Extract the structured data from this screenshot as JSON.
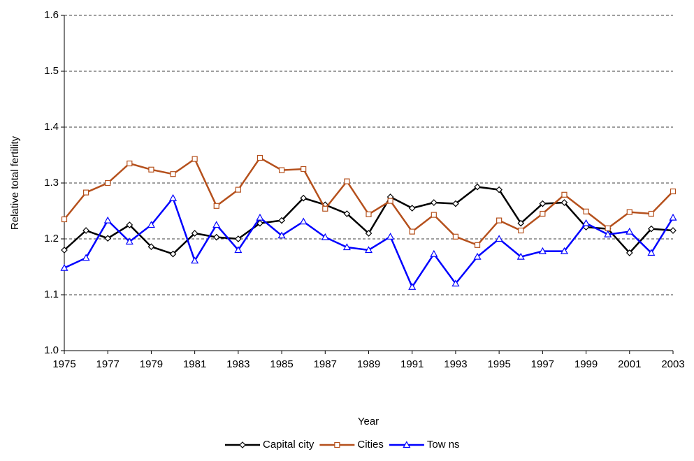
{
  "chart_data": {
    "type": "line",
    "xlabel": "Year",
    "ylabel": "Relative total fertility",
    "x": [
      1975,
      1976,
      1977,
      1978,
      1979,
      1980,
      1981,
      1982,
      1983,
      1984,
      1985,
      1986,
      1987,
      1988,
      1989,
      1990,
      1991,
      1992,
      1993,
      1994,
      1995,
      1996,
      1997,
      1998,
      1999,
      2000,
      2001,
      2002,
      2003
    ],
    "xlim": [
      1975,
      2003
    ],
    "xticks": [
      1975,
      1977,
      1979,
      1981,
      1983,
      1985,
      1987,
      1989,
      1991,
      1993,
      1995,
      1997,
      1999,
      2001,
      2003
    ],
    "ylim": [
      1.0,
      1.6
    ],
    "yticks": [
      {
        "value": 1.0,
        "label": "1.0"
      },
      1.1,
      1.2,
      1.3,
      1.4,
      1.5,
      {
        "value": 1.6,
        "label": "1.6"
      }
    ],
    "grid": true,
    "legend": "bottom",
    "series": [
      {
        "name": "Capital city",
        "color": "#000000",
        "marker": "diamond",
        "values": [
          1.18,
          1.215,
          1.201,
          1.225,
          1.186,
          1.173,
          1.21,
          1.203,
          1.2,
          1.228,
          1.233,
          1.273,
          1.261,
          1.245,
          1.21,
          1.275,
          1.255,
          1.265,
          1.263,
          1.293,
          1.288,
          1.228,
          1.263,
          1.265,
          1.221,
          1.218,
          1.175,
          1.218,
          1.215
        ]
      },
      {
        "name": "Cities",
        "color": "#b5501c",
        "marker": "square",
        "values": [
          1.235,
          1.283,
          1.3,
          1.335,
          1.324,
          1.316,
          1.343,
          1.259,
          1.288,
          1.345,
          1.323,
          1.325,
          1.254,
          1.303,
          1.244,
          1.268,
          1.213,
          1.243,
          1.204,
          1.189,
          1.233,
          1.215,
          1.245,
          1.279,
          1.249,
          1.219,
          1.248,
          1.245,
          1.285
        ]
      },
      {
        "name": "Tow ns",
        "color": "#0000ff",
        "marker": "triangle",
        "values": [
          1.148,
          1.166,
          1.233,
          1.195,
          1.225,
          1.273,
          1.161,
          1.225,
          1.18,
          1.238,
          1.206,
          1.231,
          1.203,
          1.185,
          1.18,
          1.204,
          1.114,
          1.173,
          1.12,
          1.168,
          1.2,
          1.168,
          1.178,
          1.178,
          1.228,
          1.208,
          1.213,
          1.175,
          1.238
        ]
      }
    ]
  }
}
